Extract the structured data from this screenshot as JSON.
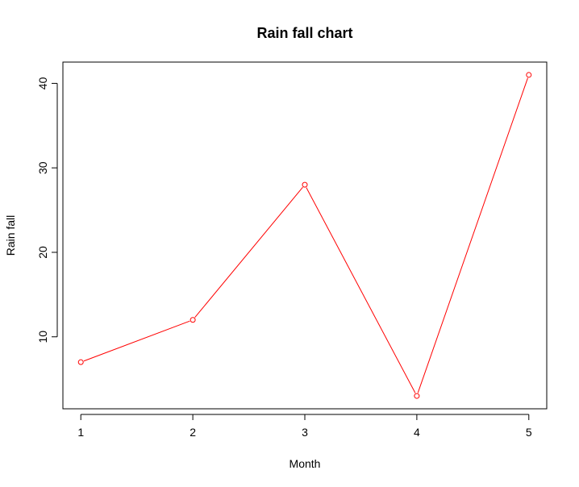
{
  "chart_data": {
    "type": "line",
    "title": "Rain fall chart",
    "xlabel": "Month",
    "ylabel": "Rain fall",
    "x": [
      1,
      2,
      3,
      4,
      5
    ],
    "series": [
      {
        "values": [
          7,
          12,
          28,
          3,
          41
        ]
      }
    ],
    "x_ticks": [
      "1",
      "2",
      "3",
      "4",
      "5"
    ],
    "y_ticks": [
      "10",
      "20",
      "30",
      "40"
    ],
    "xlim": [
      0.84,
      5.16
    ],
    "ylim": [
      1.48,
      42.52
    ],
    "grid": false,
    "markers": "open-circle",
    "colors": {
      "series": "#ff0000",
      "axis": "#000000"
    }
  }
}
